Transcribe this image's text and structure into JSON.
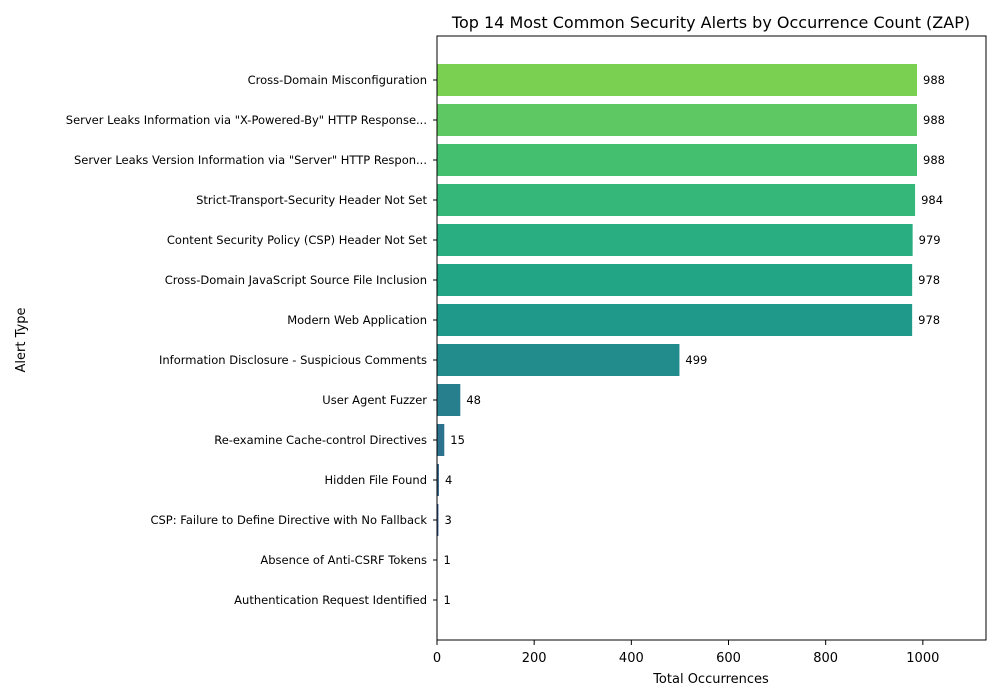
{
  "chart_data": {
    "type": "bar",
    "orientation": "horizontal",
    "title": "Top 14 Most Common Security Alerts by Occurrence Count (ZAP)",
    "xlabel": "Total Occurrences",
    "ylabel": "Alert Type",
    "xlim": [
      0,
      1130
    ],
    "xticks": [
      0,
      200,
      400,
      600,
      800,
      1000
    ],
    "xtick_labels": [
      "0",
      "200",
      "400",
      "600",
      "800",
      "1000"
    ],
    "grid": false,
    "categories": [
      "Cross-Domain Misconfiguration",
      "Server Leaks Information via \"X-Powered-By\" HTTP Response...",
      "Server Leaks Version Information via \"Server\" HTTP Respon...",
      "Strict-Transport-Security Header Not Set",
      "Content Security Policy (CSP) Header Not Set",
      "Cross-Domain JavaScript Source File Inclusion",
      "Modern Web Application",
      "Information Disclosure - Suspicious Comments",
      "User Agent Fuzzer",
      "Re-examine Cache-control Directives",
      "Hidden File Found",
      "CSP: Failure to Define Directive with No Fallback",
      "Absence of Anti-CSRF Tokens",
      "Authentication Request Identified"
    ],
    "values": [
      988,
      988,
      988,
      984,
      979,
      978,
      978,
      499,
      48,
      15,
      4,
      3,
      1,
      1
    ],
    "value_labels": [
      "988",
      "988",
      "988",
      "984",
      "979",
      "978",
      "978",
      "499",
      "48",
      "15",
      "4",
      "3",
      "1",
      "1"
    ],
    "colors": [
      "#7ad151",
      "#5ec962",
      "#44bf70",
      "#35b779",
      "#28ae80",
      "#21a585",
      "#1f9a8a",
      "#228c8d",
      "#277f8e",
      "#2c728e",
      "#31668e",
      "#365c8d",
      "#3e4989",
      "#443983"
    ]
  }
}
